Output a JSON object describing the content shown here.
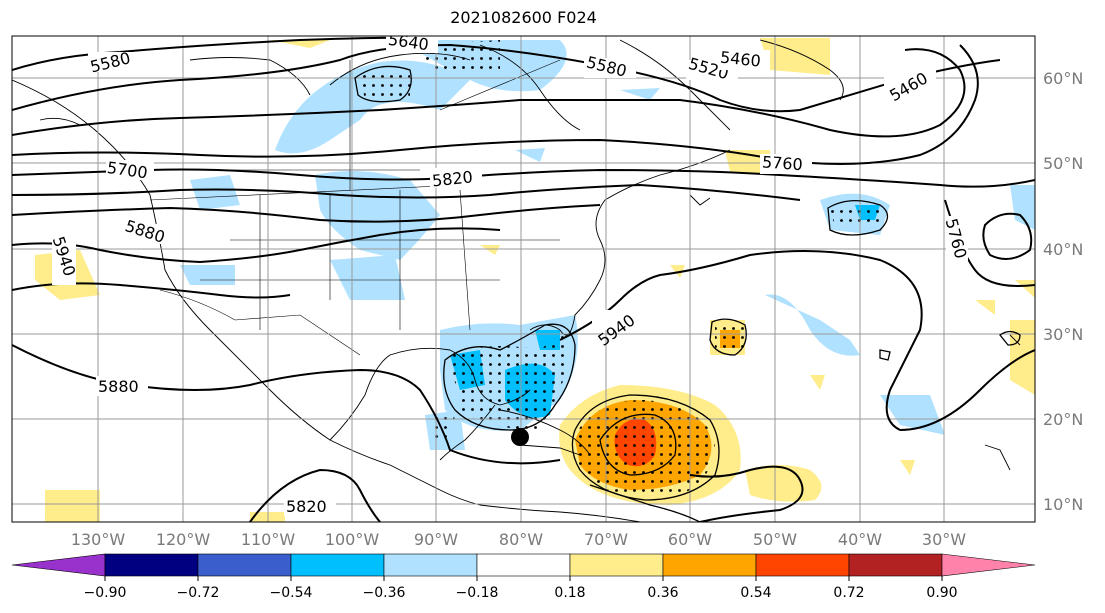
{
  "title": "2021082600 F024",
  "longitude_labels": [
    "130°W",
    "120°W",
    "110°W",
    "100°W",
    "90°W",
    "80°W",
    "70°W",
    "60°W",
    "50°W",
    "40°W",
    "30°W"
  ],
  "latitude_labels": [
    "60°N",
    "50°N",
    "40°N",
    "30°N",
    "20°N",
    "10°N"
  ],
  "contour_labels": [
    "5580",
    "5640",
    "5580",
    "5520",
    "5460",
    "5460",
    "5760",
    "5760",
    "5700",
    "5820",
    "5880",
    "5940",
    "5940",
    "5880",
    "5820",
    "5760"
  ],
  "colorbar": {
    "ticks": [
      "−0.90",
      "−0.72",
      "−0.54",
      "−0.36",
      "−0.18",
      "0.18",
      "0.36",
      "0.54",
      "0.72",
      "0.90"
    ],
    "colors": [
      "#9932cc",
      "#000080",
      "#3a5fcd",
      "#00bfff",
      "#b0e2ff",
      "#ffffff",
      "#ffec8b",
      "#ffa500",
      "#ff4500",
      "#b22222",
      "#ff82ab"
    ],
    "extend": "both"
  },
  "marker": {
    "label": "black-dot",
    "lat": 18,
    "lon": -80
  }
}
